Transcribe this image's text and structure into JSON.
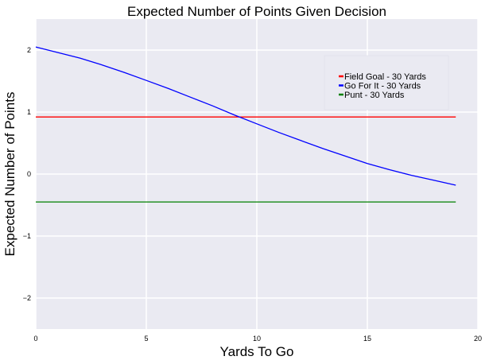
{
  "chart_data": {
    "type": "line",
    "title": "Expected Number of Points Given Decision",
    "xlabel": "Yards To Go",
    "ylabel": "Expected Number of Points",
    "xlim": [
      0,
      20
    ],
    "ylim": [
      -2.5,
      2.5
    ],
    "x_ticks": [
      0,
      5,
      10,
      15,
      20
    ],
    "x_tick_labels": [
      "0",
      "5",
      "10",
      "15",
      "20"
    ],
    "y_ticks": [
      -2,
      -1,
      0,
      1,
      2
    ],
    "y_tick_labels": [
      "−2",
      "−1",
      "0",
      "1",
      "2"
    ],
    "grid": true,
    "legend_position": "upper-right",
    "series": [
      {
        "name": "Field Goal - 30 Yards",
        "color": "#ff0000",
        "x": [
          0,
          19
        ],
        "y": [
          0.92,
          0.92
        ]
      },
      {
        "name": "Go For It - 30 Yards",
        "color": "#0000ff",
        "x": [
          0,
          1,
          2,
          3,
          4,
          5,
          6,
          7,
          8,
          9,
          10,
          11,
          12,
          13,
          14,
          15,
          16,
          17,
          18,
          19
        ],
        "y": [
          2.05,
          1.96,
          1.87,
          1.76,
          1.64,
          1.51,
          1.38,
          1.24,
          1.1,
          0.95,
          0.81,
          0.67,
          0.54,
          0.41,
          0.29,
          0.17,
          0.07,
          -0.02,
          -0.1,
          -0.18
        ]
      },
      {
        "name": "Punt - 30 Yards",
        "color": "#008000",
        "x": [
          0,
          19
        ],
        "y": [
          -0.45,
          -0.45
        ]
      }
    ]
  },
  "colors": {
    "plot_background": "#eaeaf2",
    "grid": "#ffffff",
    "figure_background": "#ffffff"
  }
}
